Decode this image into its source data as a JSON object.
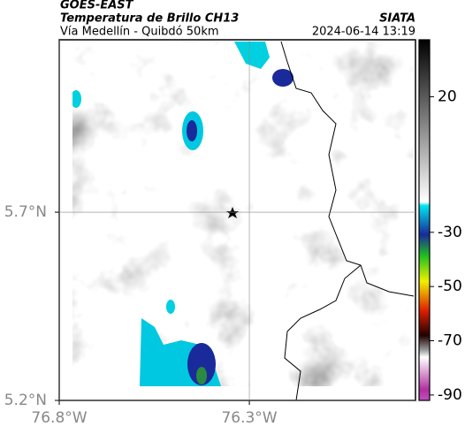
{
  "header": {
    "title": "GOES-EAST",
    "subtitle": "Temperatura de Brillo CH13",
    "source": "SIATA",
    "route": "Vía Medellín - Quibdó 50km",
    "datetime": "2024-06-14 13:19"
  },
  "map": {
    "xlim": [
      -76.8,
      -75.863
    ],
    "ylim": [
      5.2,
      6.158
    ],
    "xticks": [
      {
        "value": -76.8,
        "label": "76.8°W"
      },
      {
        "value": -76.3,
        "label": "76.3°W"
      }
    ],
    "yticks": [
      {
        "value": 5.2,
        "label": "5.2°N"
      },
      {
        "value": 5.7,
        "label": "5.7°N"
      }
    ],
    "grid": true
  },
  "colorbar": {
    "lim": [
      41,
      -92
    ],
    "ticks": [
      20,
      -30,
      -50,
      -70,
      -90
    ]
  }
}
